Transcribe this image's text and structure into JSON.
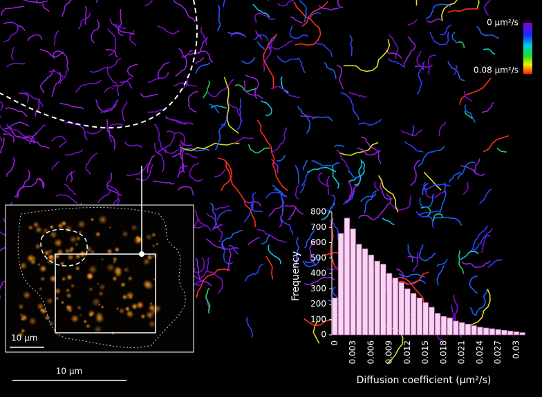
{
  "chart_data": {
    "type": "histogram",
    "xlabel": "Diffusion coefficient (µm²/s)",
    "ylabel": "Frequency",
    "bins": [
      0,
      0.001,
      0.002,
      0.003,
      0.004,
      0.005,
      0.006,
      0.007,
      0.008,
      0.009,
      0.01,
      0.011,
      0.012,
      0.013,
      0.014,
      0.015,
      0.016,
      0.017,
      0.018,
      0.019,
      0.02,
      0.021,
      0.022,
      0.023,
      0.024,
      0.025,
      0.026,
      0.027,
      0.028,
      0.029,
      0.03,
      0.031,
      0.032
    ],
    "values": [
      240,
      660,
      760,
      690,
      590,
      560,
      520,
      480,
      460,
      400,
      370,
      340,
      300,
      270,
      240,
      210,
      180,
      140,
      120,
      110,
      90,
      80,
      70,
      60,
      50,
      45,
      40,
      35,
      30,
      25,
      20,
      15
    ],
    "color": "#f4d8f0",
    "edgecolor": "#c55fb6",
    "xlim": [
      0,
      0.032
    ],
    "ylim": [
      0,
      800
    ],
    "xticks": [
      0,
      0.003,
      0.006,
      0.009,
      0.012,
      0.015,
      0.018,
      0.021,
      0.024,
      0.027,
      0.03
    ],
    "yticks": [
      0,
      100,
      200,
      300,
      400,
      500,
      600,
      700,
      800
    ]
  },
  "colorbar": {
    "top_label": "0 µm²/s",
    "bottom_label": "0.08 µm²/s"
  },
  "inset_scale_bar": "10 µm",
  "scale_bar": "10 µm"
}
